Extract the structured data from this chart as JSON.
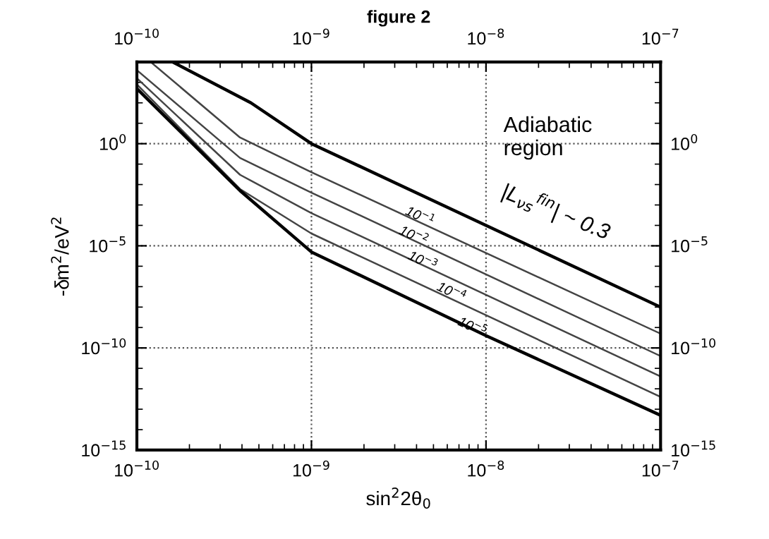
{
  "chart_data": {
    "type": "line",
    "title": "figure 2",
    "xlabel": "sin$^{2}$2θ$_{0}$",
    "ylabel": "-δm$^{2}$/eV$^{2}$",
    "log": "xy",
    "grid": true,
    "marker": "none",
    "line_style": "solid",
    "xlim": [
      1e-10,
      1e-07
    ],
    "ylim": [
      1e-15,
      10000
    ],
    "xticks": [
      {
        "value": 1e-10,
        "label": "10$^{−10}$"
      },
      {
        "value": 1e-09,
        "label": "10$^{−9}$"
      },
      {
        "value": 1e-08,
        "label": "10$^{−8}$"
      },
      {
        "value": 1e-07,
        "label": "10$^{−7}$"
      }
    ],
    "yticks": [
      {
        "value": 1e-15,
        "label": "10$^{−15}$"
      },
      {
        "value": 1e-10,
        "label": "10$^{−10}$"
      },
      {
        "value": 1e-05,
        "label": "10$^{−5}$"
      },
      {
        "value": 1,
        "label": "10$^{0}$"
      }
    ],
    "series": [
      {
        "color": "#000000",
        "x": [
          1.6e-10,
          4.5e-10,
          1e-09,
          1e-08,
          1e-07
        ],
        "values": [
          10000,
          100,
          1,
          0.0001,
          1e-08
        ]
      },
      {
        "color": "#444444",
        "x": [
          1.2e-10,
          3.9e-10,
          1e-09,
          1e-07
        ],
        "values": [
          10000,
          2,
          0.04,
          5e-10
        ]
      },
      {
        "color": "#444444",
        "x": [
          1e-10,
          3.9e-10,
          1e-09,
          1e-07
        ],
        "values": [
          4000,
          0.2,
          0.004,
          4e-11
        ]
      },
      {
        "color": "#444444",
        "x": [
          1e-10,
          3.9e-10,
          1e-09,
          1e-07
        ],
        "values": [
          1600,
          0.03,
          0.0004,
          4e-12
        ]
      },
      {
        "color": "#444444",
        "x": [
          1e-10,
          3.9e-10,
          1e-09,
          1e-07
        ],
        "values": [
          800,
          0.006,
          4e-05,
          4e-13
        ]
      },
      {
        "color": "#000000",
        "x": [
          1e-10,
          3.9e-10,
          1e-09,
          1e-08,
          1e-07
        ],
        "values": [
          500,
          0.005,
          5e-06,
          4e-10,
          5e-14
        ]
      }
    ],
    "annotations": [
      "10$^{−1}$",
      "10$^{−2}$",
      "10$^{−3}$",
      "10$^{−4}$",
      "10$^{−5}$",
      "|L$_{νs}$$^{fin}$| ~ 0.3",
      "Adiabatic\nregion"
    ]
  }
}
